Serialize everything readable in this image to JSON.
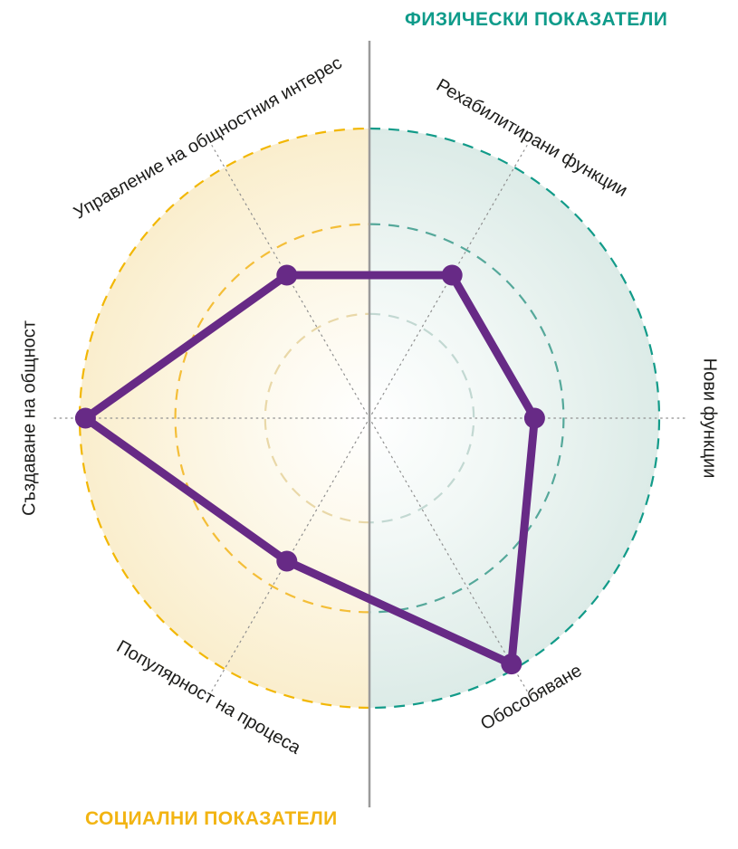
{
  "chart_data": {
    "type": "radar",
    "title_right": "ФИЗИЧЕСКИ ПОКАЗАТЕЛИ",
    "title_left": "СОЦИАЛНИ ПОКАЗАТЕЛИ",
    "scale": {
      "min": 0,
      "max": 100
    },
    "rings_pct": [
      36,
      67,
      100
    ],
    "axes": [
      {
        "label": "Рехабилитирани функции",
        "angle_deg": 60,
        "value": 57,
        "group": "физически показатели"
      },
      {
        "label": "Нови функции",
        "angle_deg": 0,
        "value": 57,
        "group": "физически показатели"
      },
      {
        "label": "Обособяване",
        "angle_deg": 300,
        "value": 98,
        "group": "физически показатели"
      },
      {
        "label": "Популярност на процеса",
        "angle_deg": 240,
        "value": 57,
        "group": "социални показатели"
      },
      {
        "label": "Създаване на общност",
        "angle_deg": 180,
        "value": 98,
        "group": "социални показатели"
      },
      {
        "label": "Управление на общностния интерес",
        "angle_deg": 120,
        "value": 57,
        "group": "социални показатели"
      }
    ],
    "colors": {
      "series": "#672a86",
      "physical_accent": "#0f9b8a",
      "social_accent": "#f2b412",
      "ring_colors_right": [
        "#c2d8d2",
        "#55a89a",
        "#129b89"
      ],
      "ring_colors_left": [
        "#e9d8a8",
        "#f4be38",
        "#f2b705"
      ],
      "bg_right_mid": "#f2f8f6",
      "bg_right_edge": "#dcebe7",
      "bg_left_mid": "#fdf9ec",
      "bg_left_edge": "#faeecd",
      "spoke": "#8f8f8f",
      "divider": "#9b9b9b",
      "label_text": "#1d1d1b"
    }
  }
}
